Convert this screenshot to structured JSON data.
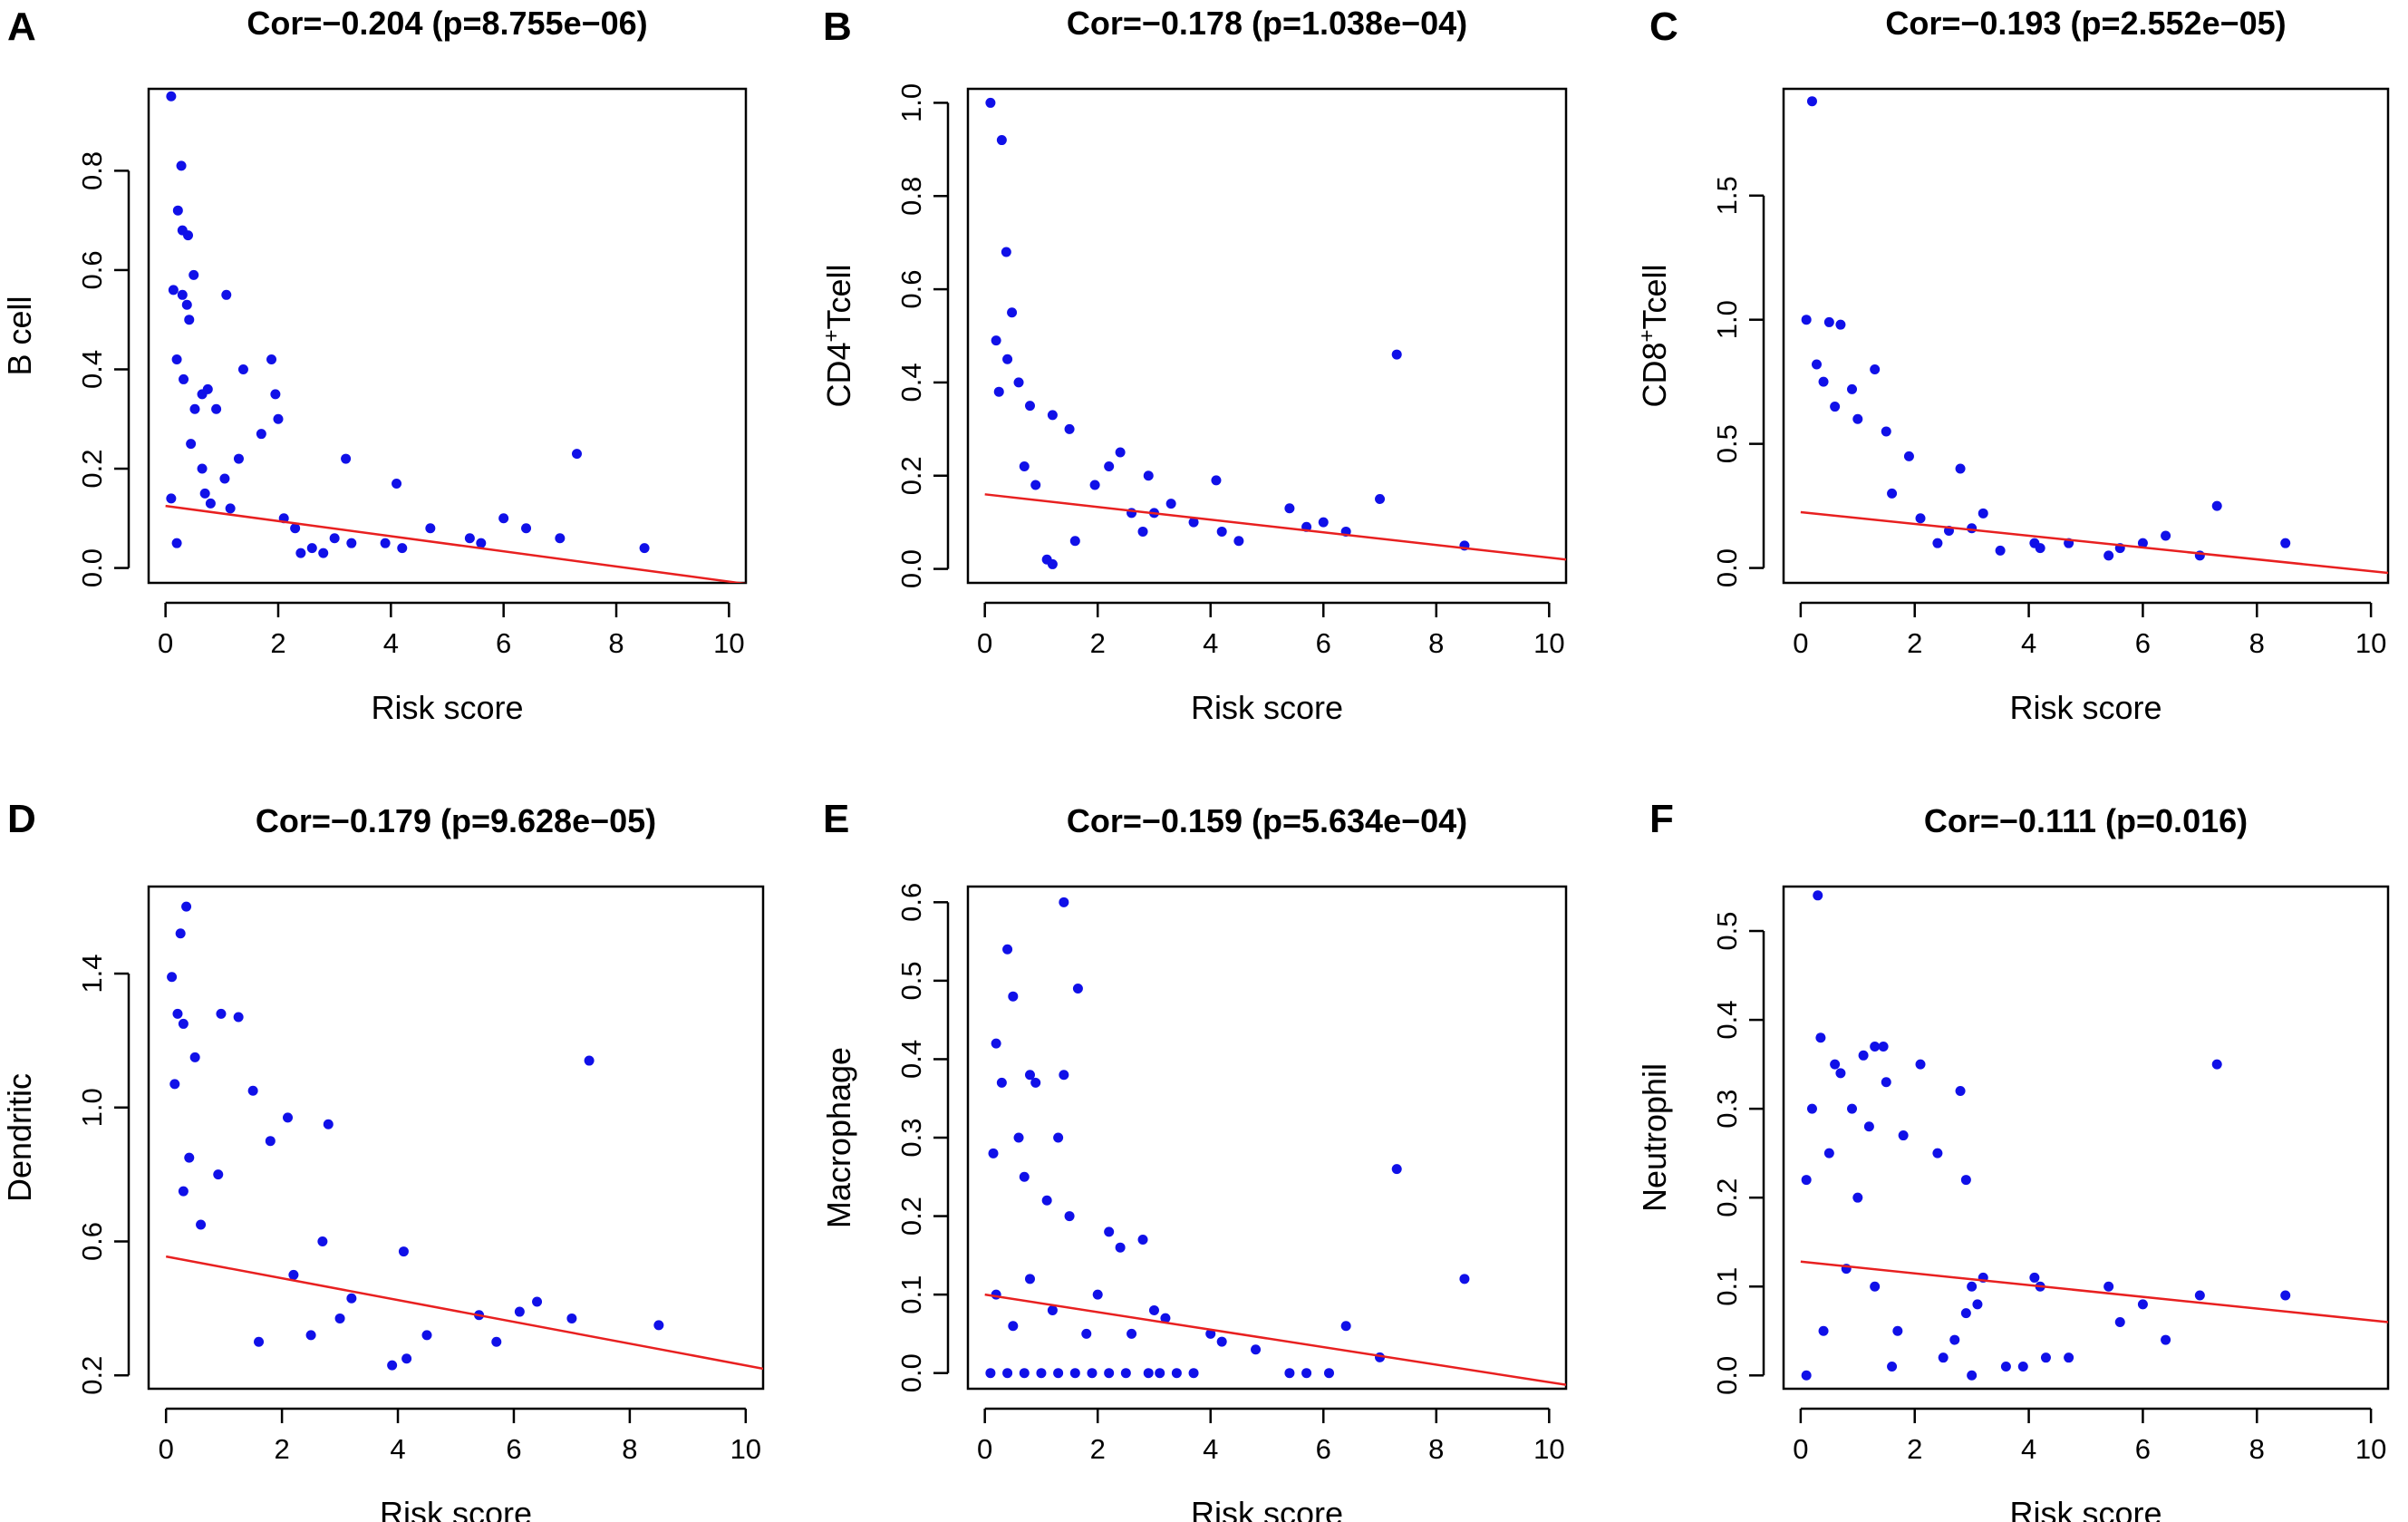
{
  "colors": {
    "point": "#1010e8",
    "fit_line": "#e82020",
    "axis": "#000000"
  },
  "chart_data": [
    {
      "panel": "A",
      "type": "scatter",
      "title": "Cor=−0.204 (p=8.755e−06)",
      "xlabel": "Risk score",
      "ylabel": "B cell",
      "ylabel_sup": "",
      "ylabel_tail": "",
      "xlim": [
        -0.3,
        10.3
      ],
      "ylim": [
        -0.03,
        0.965
      ],
      "xticks": [
        0,
        2,
        4,
        6,
        8,
        10
      ],
      "xtick_labels": [
        "0",
        "2",
        "4",
        "6",
        "8",
        "10"
      ],
      "yticks": [
        0.0,
        0.2,
        0.4,
        0.6,
        0.8
      ],
      "ytick_labels": [
        "0.0",
        "0.2",
        "0.4",
        "0.6",
        "0.8"
      ],
      "fit_line": {
        "x": [
          0,
          10.3
        ],
        "y": [
          0.125,
          -0.032
        ]
      },
      "points": [
        [
          0.1,
          0.95
        ],
        [
          0.28,
          0.81
        ],
        [
          0.22,
          0.72
        ],
        [
          0.3,
          0.68
        ],
        [
          0.4,
          0.67
        ],
        [
          0.5,
          0.59
        ],
        [
          0.14,
          0.56
        ],
        [
          0.3,
          0.55
        ],
        [
          0.38,
          0.53
        ],
        [
          0.42,
          0.5
        ],
        [
          1.08,
          0.55
        ],
        [
          0.2,
          0.42
        ],
        [
          1.38,
          0.4
        ],
        [
          1.88,
          0.42
        ],
        [
          0.32,
          0.38
        ],
        [
          0.52,
          0.32
        ],
        [
          0.65,
          0.35
        ],
        [
          0.75,
          0.36
        ],
        [
          0.9,
          0.32
        ],
        [
          7.3,
          0.23
        ],
        [
          3.2,
          0.22
        ],
        [
          1.95,
          0.35
        ],
        [
          2.0,
          0.3
        ],
        [
          1.7,
          0.27
        ],
        [
          1.3,
          0.22
        ],
        [
          0.1,
          0.14
        ],
        [
          0.2,
          0.05
        ],
        [
          4.1,
          0.17
        ],
        [
          2.3,
          0.08
        ],
        [
          2.6,
          0.04
        ],
        [
          3.0,
          0.06
        ],
        [
          3.3,
          0.05
        ],
        [
          2.8,
          0.03
        ],
        [
          3.9,
          0.05
        ],
        [
          4.2,
          0.04
        ],
        [
          4.7,
          0.08
        ],
        [
          5.4,
          0.06
        ],
        [
          5.6,
          0.05
        ],
        [
          6.0,
          0.1
        ],
        [
          6.4,
          0.08
        ],
        [
          7.0,
          0.06
        ],
        [
          8.5,
          0.04
        ],
        [
          2.1,
          0.1
        ],
        [
          2.4,
          0.03
        ],
        [
          0.7,
          0.15
        ],
        [
          0.8,
          0.13
        ],
        [
          1.05,
          0.18
        ],
        [
          1.15,
          0.12
        ],
        [
          0.65,
          0.2
        ],
        [
          0.45,
          0.25
        ]
      ]
    },
    {
      "panel": "B",
      "type": "scatter",
      "title": "Cor=−0.178 (p=1.038e−04)",
      "xlabel": "Risk score",
      "ylabel": "CD4",
      "ylabel_sup": "+",
      "ylabel_tail": "Tcell",
      "xlim": [
        -0.3,
        10.3
      ],
      "ylim": [
        -0.03,
        1.03
      ],
      "xticks": [
        0,
        2,
        4,
        6,
        8,
        10
      ],
      "xtick_labels": [
        "0",
        "2",
        "4",
        "6",
        "8",
        "10"
      ],
      "yticks": [
        0.0,
        0.2,
        0.4,
        0.6,
        0.8,
        1.0
      ],
      "ytick_labels": [
        "0.0",
        "0.2",
        "0.4",
        "0.6",
        "0.8",
        "1.0"
      ],
      "fit_line": {
        "x": [
          0,
          10.3
        ],
        "y": [
          0.16,
          0.02
        ]
      },
      "points": [
        [
          0.1,
          1.0
        ],
        [
          0.3,
          0.92
        ],
        [
          0.38,
          0.68
        ],
        [
          0.48,
          0.55
        ],
        [
          0.2,
          0.49
        ],
        [
          0.4,
          0.45
        ],
        [
          0.6,
          0.4
        ],
        [
          0.25,
          0.38
        ],
        [
          0.8,
          0.35
        ],
        [
          1.2,
          0.33
        ],
        [
          1.5,
          0.3
        ],
        [
          7.3,
          0.46
        ],
        [
          7.0,
          0.15
        ],
        [
          8.5,
          0.05
        ],
        [
          4.1,
          0.19
        ],
        [
          5.4,
          0.13
        ],
        [
          6.0,
          0.1
        ],
        [
          6.4,
          0.08
        ],
        [
          5.7,
          0.09
        ],
        [
          4.5,
          0.06
        ],
        [
          4.2,
          0.08
        ],
        [
          3.7,
          0.1
        ],
        [
          3.3,
          0.14
        ],
        [
          3.0,
          0.12
        ],
        [
          2.8,
          0.08
        ],
        [
          2.6,
          0.12
        ],
        [
          2.4,
          0.25
        ],
        [
          2.9,
          0.2
        ],
        [
          2.2,
          0.22
        ],
        [
          1.95,
          0.18
        ],
        [
          1.6,
          0.06
        ],
        [
          1.2,
          0.01
        ],
        [
          1.1,
          0.02
        ],
        [
          0.7,
          0.22
        ],
        [
          0.9,
          0.18
        ]
      ]
    },
    {
      "panel": "C",
      "type": "scatter",
      "title": "Cor=−0.193 (p=2.552e−05)",
      "xlabel": "Risk score",
      "ylabel": "CD8",
      "ylabel_sup": "+",
      "ylabel_tail": "Tcell",
      "xlim": [
        -0.3,
        10.3
      ],
      "ylim": [
        -0.06,
        1.93
      ],
      "xticks": [
        0,
        2,
        4,
        6,
        8,
        10
      ],
      "xtick_labels": [
        "0",
        "2",
        "4",
        "6",
        "8",
        "10"
      ],
      "yticks": [
        0.0,
        0.5,
        1.0,
        1.5
      ],
      "ytick_labels": [
        "0.0",
        "0.5",
        "1.0",
        "1.5"
      ],
      "fit_line": {
        "x": [
          0,
          10.3
        ],
        "y": [
          0.225,
          -0.02
        ]
      },
      "points": [
        [
          0.2,
          1.88
        ],
        [
          0.1,
          1.0
        ],
        [
          0.5,
          0.99
        ],
        [
          0.7,
          0.98
        ],
        [
          0.28,
          0.82
        ],
        [
          0.4,
          0.75
        ],
        [
          0.9,
          0.72
        ],
        [
          1.3,
          0.8
        ],
        [
          0.6,
          0.65
        ],
        [
          1.0,
          0.6
        ],
        [
          1.5,
          0.55
        ],
        [
          7.3,
          0.25
        ],
        [
          8.5,
          0.1
        ],
        [
          7.0,
          0.05
        ],
        [
          6.4,
          0.13
        ],
        [
          6.0,
          0.1
        ],
        [
          5.4,
          0.05
        ],
        [
          5.6,
          0.08
        ],
        [
          4.7,
          0.1
        ],
        [
          4.2,
          0.08
        ],
        [
          4.1,
          0.1
        ],
        [
          3.5,
          0.07
        ],
        [
          3.2,
          0.22
        ],
        [
          3.0,
          0.16
        ],
        [
          2.8,
          0.4
        ],
        [
          2.6,
          0.15
        ],
        [
          2.4,
          0.1
        ],
        [
          1.9,
          0.45
        ],
        [
          2.1,
          0.2
        ],
        [
          1.6,
          0.3
        ]
      ]
    },
    {
      "panel": "D",
      "type": "scatter",
      "title": "Cor=−0.179 (p=9.628e−05)",
      "xlabel": "Risk score",
      "ylabel": "Dendritic",
      "ylabel_sup": "",
      "ylabel_tail": "",
      "xlim": [
        -0.3,
        10.3
      ],
      "ylim": [
        0.16,
        1.66
      ],
      "xticks": [
        0,
        2,
        4,
        6,
        8,
        10
      ],
      "xtick_labels": [
        "0",
        "2",
        "4",
        "6",
        "8",
        "10"
      ],
      "yticks": [
        0.2,
        0.6,
        1.0,
        1.4
      ],
      "ytick_labels": [
        "0.2",
        "0.6",
        "1.0",
        "1.4"
      ],
      "fit_line": {
        "x": [
          0,
          10.3
        ],
        "y": [
          0.555,
          0.22
        ]
      },
      "points": [
        [
          0.35,
          1.6
        ],
        [
          0.25,
          1.52
        ],
        [
          0.1,
          1.39
        ],
        [
          0.2,
          1.28
        ],
        [
          0.3,
          1.25
        ],
        [
          0.15,
          1.07
        ],
        [
          0.5,
          1.15
        ],
        [
          0.95,
          1.28
        ],
        [
          1.25,
          1.27
        ],
        [
          1.5,
          1.05
        ],
        [
          1.8,
          0.9
        ],
        [
          2.1,
          0.97
        ],
        [
          7.3,
          1.14
        ],
        [
          8.5,
          0.35
        ],
        [
          7.0,
          0.37
        ],
        [
          6.4,
          0.42
        ],
        [
          6.1,
          0.39
        ],
        [
          5.7,
          0.3
        ],
        [
          5.4,
          0.38
        ],
        [
          4.5,
          0.32
        ],
        [
          4.1,
          0.57
        ],
        [
          4.15,
          0.25
        ],
        [
          3.9,
          0.23
        ],
        [
          3.2,
          0.43
        ],
        [
          3.0,
          0.37
        ],
        [
          2.8,
          0.95
        ],
        [
          2.7,
          0.6
        ],
        [
          2.5,
          0.32
        ],
        [
          2.2,
          0.5
        ],
        [
          1.6,
          0.3
        ],
        [
          0.9,
          0.8
        ],
        [
          0.6,
          0.65
        ],
        [
          0.4,
          0.85
        ],
        [
          0.3,
          0.75
        ]
      ]
    },
    {
      "panel": "E",
      "type": "scatter",
      "title": "Cor=−0.159 (p=5.634e−04)",
      "xlabel": "Risk score",
      "ylabel": "Macrophage",
      "ylabel_sup": "",
      "ylabel_tail": "",
      "xlim": [
        -0.3,
        10.3
      ],
      "ylim": [
        -0.02,
        0.62
      ],
      "xticks": [
        0,
        2,
        4,
        6,
        8,
        10
      ],
      "xtick_labels": [
        "0",
        "2",
        "4",
        "6",
        "8",
        "10"
      ],
      "yticks": [
        0.0,
        0.1,
        0.2,
        0.3,
        0.4,
        0.5,
        0.6
      ],
      "ytick_labels": [
        "0.0",
        "0.1",
        "0.2",
        "0.3",
        "0.4",
        "0.5",
        "0.6"
      ],
      "fit_line": {
        "x": [
          0,
          10.3
        ],
        "y": [
          0.1,
          -0.015
        ]
      },
      "points": [
        [
          1.4,
          0.6
        ],
        [
          0.4,
          0.54
        ],
        [
          0.5,
          0.48
        ],
        [
          1.65,
          0.49
        ],
        [
          0.2,
          0.42
        ],
        [
          0.3,
          0.37
        ],
        [
          0.8,
          0.38
        ],
        [
          0.9,
          0.37
        ],
        [
          1.4,
          0.38
        ],
        [
          0.15,
          0.28
        ],
        [
          0.6,
          0.3
        ],
        [
          1.3,
          0.3
        ],
        [
          0.7,
          0.25
        ],
        [
          1.1,
          0.22
        ],
        [
          1.5,
          0.2
        ],
        [
          2.2,
          0.18
        ],
        [
          2.4,
          0.16
        ],
        [
          2.8,
          0.17
        ],
        [
          3.0,
          0.08
        ],
        [
          3.2,
          0.07
        ],
        [
          2.6,
          0.05
        ],
        [
          7.3,
          0.26
        ],
        [
          8.5,
          0.12
        ],
        [
          7.0,
          0.02
        ],
        [
          6.4,
          0.06
        ],
        [
          6.1,
          0.0
        ],
        [
          5.7,
          0.0
        ],
        [
          5.4,
          0.0
        ],
        [
          4.8,
          0.03
        ],
        [
          4.2,
          0.04
        ],
        [
          4.0,
          0.05
        ],
        [
          3.7,
          0.0
        ],
        [
          3.4,
          0.0
        ],
        [
          3.1,
          0.0
        ],
        [
          2.9,
          0.0
        ],
        [
          2.5,
          0.0
        ],
        [
          2.2,
          0.0
        ],
        [
          1.9,
          0.0
        ],
        [
          1.6,
          0.0
        ],
        [
          1.3,
          0.0
        ],
        [
          1.0,
          0.0
        ],
        [
          0.7,
          0.0
        ],
        [
          0.4,
          0.0
        ],
        [
          0.1,
          0.0
        ],
        [
          0.2,
          0.1
        ],
        [
          0.5,
          0.06
        ],
        [
          0.8,
          0.12
        ],
        [
          1.2,
          0.08
        ],
        [
          1.8,
          0.05
        ],
        [
          2.0,
          0.1
        ]
      ]
    },
    {
      "panel": "F",
      "type": "scatter",
      "title": "Cor=−0.111 (p=0.016)",
      "xlabel": "Risk score",
      "ylabel": "Neutrophil",
      "ylabel_sup": "",
      "ylabel_tail": "",
      "xlim": [
        -0.3,
        10.3
      ],
      "ylim": [
        -0.015,
        0.55
      ],
      "xticks": [
        0,
        2,
        4,
        6,
        8,
        10
      ],
      "xtick_labels": [
        "0",
        "2",
        "4",
        "6",
        "8",
        "10"
      ],
      "yticks": [
        0.0,
        0.1,
        0.2,
        0.3,
        0.4,
        0.5
      ],
      "ytick_labels": [
        "0.0",
        "0.1",
        "0.2",
        "0.3",
        "0.4",
        "0.5"
      ],
      "fit_line": {
        "x": [
          0,
          10.3
        ],
        "y": [
          0.128,
          0.06
        ]
      },
      "points": [
        [
          0.3,
          0.54
        ],
        [
          0.35,
          0.38
        ],
        [
          1.3,
          0.37
        ],
        [
          1.45,
          0.37
        ],
        [
          1.1,
          0.36
        ],
        [
          0.6,
          0.35
        ],
        [
          0.7,
          0.34
        ],
        [
          2.1,
          0.35
        ],
        [
          2.8,
          0.32
        ],
        [
          0.2,
          0.3
        ],
        [
          1.5,
          0.33
        ],
        [
          0.9,
          0.3
        ],
        [
          1.2,
          0.28
        ],
        [
          1.8,
          0.27
        ],
        [
          2.4,
          0.25
        ],
        [
          2.9,
          0.22
        ],
        [
          0.1,
          0.22
        ],
        [
          0.5,
          0.25
        ],
        [
          1.0,
          0.2
        ],
        [
          7.3,
          0.35
        ],
        [
          8.5,
          0.09
        ],
        [
          7.0,
          0.09
        ],
        [
          6.4,
          0.04
        ],
        [
          6.0,
          0.08
        ],
        [
          5.6,
          0.06
        ],
        [
          5.4,
          0.1
        ],
        [
          4.7,
          0.02
        ],
        [
          4.3,
          0.02
        ],
        [
          4.1,
          0.11
        ],
        [
          4.2,
          0.1
        ],
        [
          3.9,
          0.01
        ],
        [
          3.6,
          0.01
        ],
        [
          3.2,
          0.11
        ],
        [
          3.1,
          0.08
        ],
        [
          3.0,
          0.1
        ],
        [
          2.9,
          0.07
        ],
        [
          2.7,
          0.04
        ],
        [
          2.5,
          0.02
        ],
        [
          3.0,
          0.0
        ],
        [
          1.6,
          0.01
        ],
        [
          0.1,
          0.0
        ],
        [
          0.4,
          0.05
        ],
        [
          0.8,
          0.12
        ],
        [
          1.3,
          0.1
        ],
        [
          1.7,
          0.05
        ]
      ]
    }
  ]
}
